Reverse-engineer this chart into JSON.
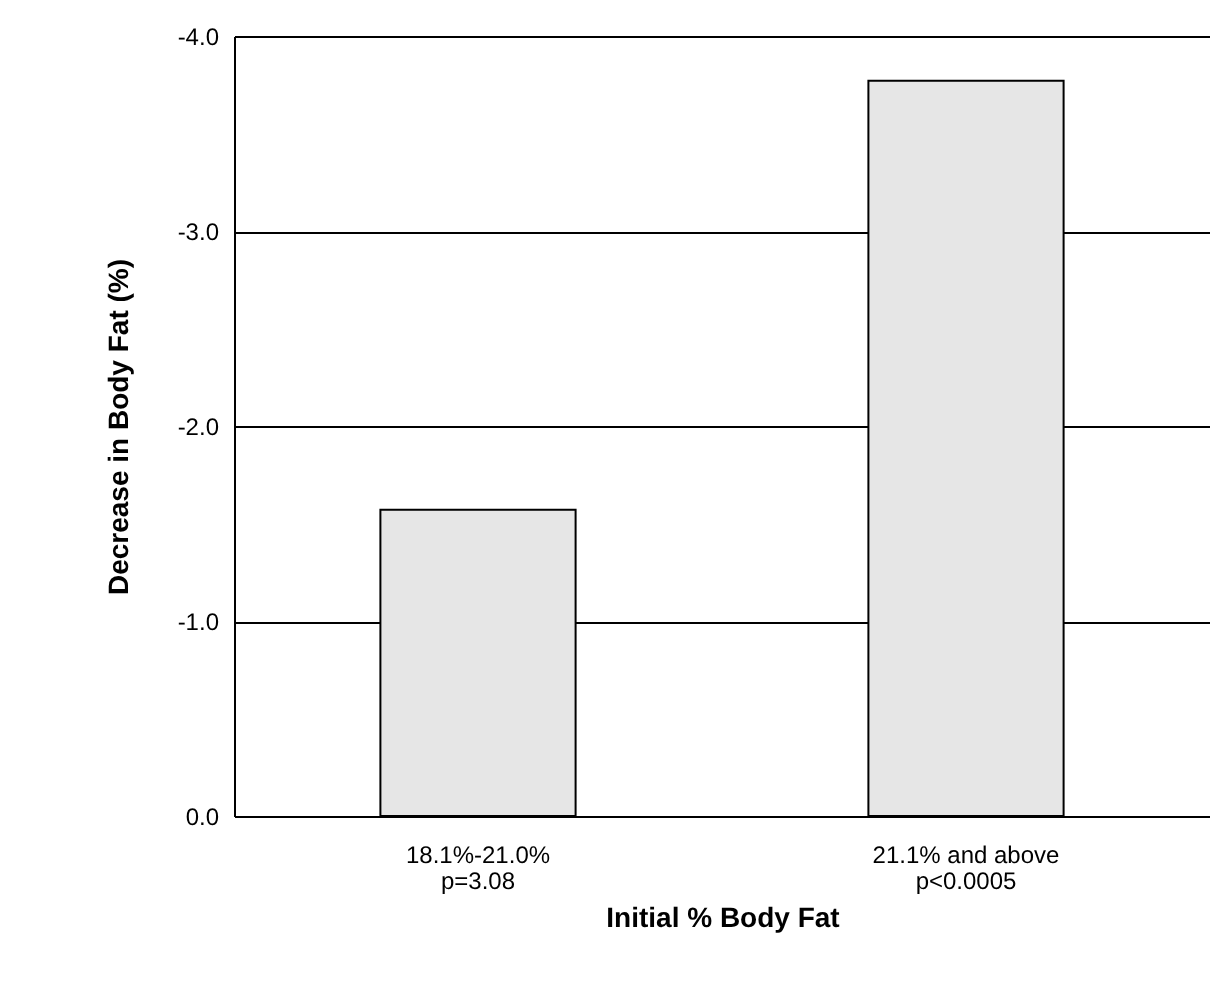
{
  "chart_data": {
    "type": "bar",
    "xlabel": "Initial % Body Fat",
    "ylabel": "Decrease in Body Fat (%)",
    "categories": [
      "18.1%-21.0%\np=3.08",
      "21.1% and above\np<0.0005"
    ],
    "values": [
      -1.57,
      -3.77
    ],
    "color": "#e6e6e6",
    "ylim": [
      0,
      -4
    ],
    "yticks": [
      {
        "value": 0,
        "label": "0.0"
      },
      {
        "value": -1,
        "label": "-1.0"
      },
      {
        "value": -2,
        "label": "-2.0"
      },
      {
        "value": -3,
        "label": "-3.0"
      },
      {
        "value": -4,
        "label": "-4.0"
      }
    ],
    "grid": "y"
  }
}
